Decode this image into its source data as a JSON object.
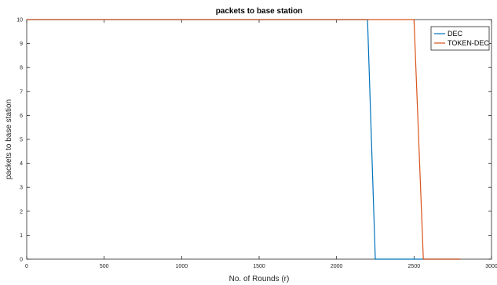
{
  "chart_data": {
    "type": "line",
    "title": "packets to base station",
    "xlabel": "No. of Rounds (r)",
    "ylabel": "packets to base station",
    "xlim": [
      0,
      3000
    ],
    "ylim": [
      0,
      10
    ],
    "xticks": [
      0,
      500,
      1000,
      1500,
      2000,
      2500,
      3000
    ],
    "yticks": [
      0,
      1,
      2,
      3,
      4,
      5,
      6,
      7,
      8,
      9,
      10
    ],
    "grid": false,
    "legend_position": "top-right",
    "series": [
      {
        "name": "DEC",
        "color": "#0072BD",
        "x": [
          0,
          2200,
          2250,
          2800
        ],
        "y": [
          10,
          10,
          0,
          0
        ]
      },
      {
        "name": "TOKEN-DEC",
        "color": "#D95319",
        "x": [
          0,
          2500,
          2560,
          2800
        ],
        "y": [
          10,
          10,
          0,
          0
        ]
      }
    ]
  }
}
